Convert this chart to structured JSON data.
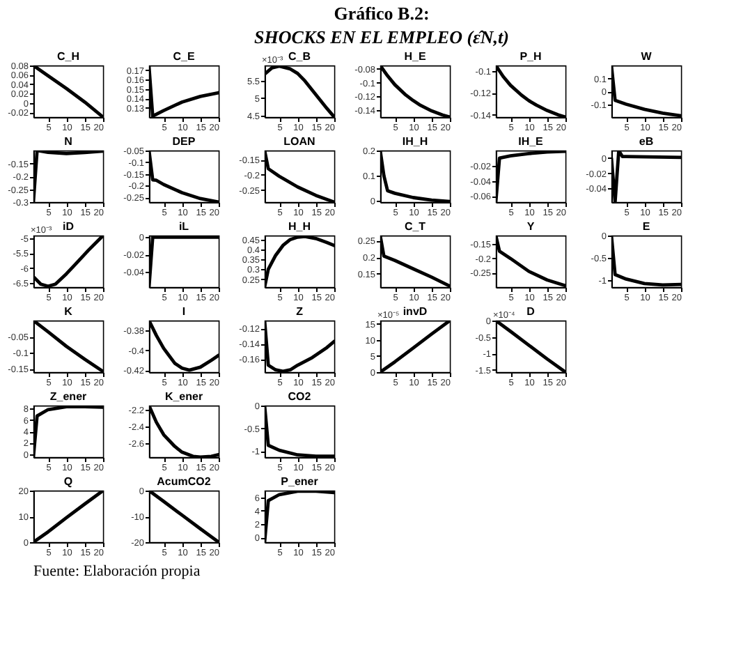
{
  "chart_data": [
    {
      "type": "other",
      "title": "Gráfico B.2:",
      "subtitle": "SHOCKS EN EL EMPLEO (ε̂N,t)",
      "annotations": [
        "Fuente:      Elaboración propia"
      ]
    },
    {
      "type": "line",
      "title": "C_H",
      "x": [
        1,
        5,
        10,
        15,
        20
      ],
      "series": [
        {
          "color": "#000000",
          "values": [
            0.08,
            0.058,
            0.031,
            0.002,
            -0.03
          ]
        }
      ],
      "xlim": [
        1,
        20
      ],
      "xticks": [
        5,
        10,
        15,
        20
      ],
      "ylim": [
        -0.03,
        0.08
      ],
      "yticks": [
        -0.02,
        0,
        0.02,
        0.04,
        0.06,
        0.08
      ],
      "grid": false
    },
    {
      "type": "line",
      "title": "C_E",
      "x": [
        1,
        2,
        5,
        10,
        15,
        20
      ],
      "series": [
        {
          "color": "#000000",
          "values": [
            0.174,
            0.121,
            0.127,
            0.136,
            0.142,
            0.146
          ]
        }
      ],
      "xlim": [
        1,
        20
      ],
      "xticks": [
        5,
        10,
        15,
        20
      ],
      "ylim": [
        0.12,
        0.175
      ],
      "yticks": [
        0.13,
        0.14,
        0.15,
        0.16,
        0.17
      ],
      "grid": false
    },
    {
      "type": "line",
      "title": "C_B",
      "annotations": [
        "×10⁻³"
      ],
      "x": [
        1,
        3,
        5,
        8,
        10,
        12,
        15,
        18,
        20
      ],
      "series": [
        {
          "color": "#000000",
          "values": [
            5.7,
            5.88,
            5.93,
            5.85,
            5.72,
            5.5,
            5.1,
            4.7,
            4.45
          ]
        }
      ],
      "xlim": [
        1,
        20
      ],
      "xticks": [
        5,
        10,
        15,
        20
      ],
      "ylim": [
        4.45,
        5.95
      ],
      "yticks": [
        4.5,
        5,
        5.5
      ],
      "grid": false
    },
    {
      "type": "line",
      "title": "H_E",
      "x": [
        1,
        3,
        5,
        8,
        10,
        12,
        15,
        18,
        20
      ],
      "series": [
        {
          "color": "#000000",
          "values": [
            -0.075,
            -0.09,
            -0.103,
            -0.118,
            -0.126,
            -0.133,
            -0.141,
            -0.147,
            -0.15
          ]
        }
      ],
      "xlim": [
        1,
        20
      ],
      "xticks": [
        5,
        10,
        15,
        20
      ],
      "ylim": [
        -0.15,
        -0.075
      ],
      "yticks": [
        -0.14,
        -0.12,
        -0.1,
        -0.08
      ],
      "grid": false
    },
    {
      "type": "line",
      "title": "P_H",
      "x": [
        1,
        3,
        5,
        8,
        10,
        12,
        15,
        18,
        20
      ],
      "series": [
        {
          "color": "#000000",
          "values": [
            -0.095,
            -0.105,
            -0.113,
            -0.122,
            -0.127,
            -0.131,
            -0.136,
            -0.14,
            -0.142
          ]
        }
      ],
      "xlim": [
        1,
        20
      ],
      "xticks": [
        5,
        10,
        15,
        20
      ],
      "ylim": [
        -0.142,
        -0.095
      ],
      "yticks": [
        -0.14,
        -0.12,
        -0.1
      ],
      "grid": false
    },
    {
      "type": "line",
      "title": "W",
      "x": [
        1,
        2,
        5,
        10,
        15,
        20
      ],
      "series": [
        {
          "color": "#000000",
          "values": [
            0.2,
            -0.07,
            -0.1,
            -0.14,
            -0.17,
            -0.19
          ]
        }
      ],
      "xlim": [
        1,
        20
      ],
      "xticks": [
        5,
        10,
        15,
        20
      ],
      "ylim": [
        -0.2,
        0.2
      ],
      "yticks": [
        -0.1,
        0,
        0.1
      ],
      "grid": false
    },
    {
      "type": "line",
      "title": "N",
      "x": [
        1,
        2,
        5,
        10,
        15,
        20
      ],
      "series": [
        {
          "color": "#000000",
          "values": [
            -0.3,
            -0.1,
            -0.107,
            -0.112,
            -0.108,
            -0.102
          ]
        }
      ],
      "xlim": [
        1,
        20
      ],
      "xticks": [
        5,
        10,
        15,
        20
      ],
      "ylim": [
        -0.3,
        -0.1
      ],
      "yticks": [
        -0.3,
        -0.25,
        -0.2,
        -0.15
      ],
      "grid": false
    },
    {
      "type": "line",
      "title": "DEP",
      "x": [
        1,
        2,
        3,
        5,
        10,
        15,
        20
      ],
      "series": [
        {
          "color": "#000000",
          "values": [
            -0.05,
            -0.175,
            -0.177,
            -0.195,
            -0.23,
            -0.255,
            -0.27
          ]
        }
      ],
      "xlim": [
        1,
        20
      ],
      "xticks": [
        5,
        10,
        15,
        20
      ],
      "ylim": [
        -0.27,
        -0.05
      ],
      "yticks": [
        -0.25,
        -0.2,
        -0.15,
        -0.1,
        -0.05
      ],
      "grid": false
    },
    {
      "type": "line",
      "title": "LOAN",
      "x": [
        1,
        2,
        5,
        10,
        15,
        20
      ],
      "series": [
        {
          "color": "#000000",
          "values": [
            -0.12,
            -0.18,
            -0.205,
            -0.24,
            -0.268,
            -0.29
          ]
        }
      ],
      "xlim": [
        1,
        20
      ],
      "xticks": [
        5,
        10,
        15,
        20
      ],
      "ylim": [
        -0.29,
        -0.12
      ],
      "yticks": [
        -0.25,
        -0.2,
        -0.15
      ],
      "grid": false
    },
    {
      "type": "line",
      "title": "IH_H",
      "x": [
        1,
        2,
        3,
        5,
        10,
        15,
        20
      ],
      "series": [
        {
          "color": "#000000",
          "values": [
            0.2,
            0.1,
            0.04,
            0.03,
            0.013,
            0.003,
            -0.003
          ]
        }
      ],
      "xlim": [
        1,
        20
      ],
      "xticks": [
        5,
        10,
        15,
        20
      ],
      "ylim": [
        -0.005,
        0.2
      ],
      "yticks": [
        0,
        0.1,
        0.2
      ],
      "grid": false
    },
    {
      "type": "line",
      "title": "IH_E",
      "x": [
        1,
        2,
        5,
        10,
        15,
        20
      ],
      "series": [
        {
          "color": "#000000",
          "values": [
            -0.068,
            -0.01,
            -0.007,
            -0.004,
            -0.002,
            -0.001
          ]
        }
      ],
      "xlim": [
        1,
        20
      ],
      "xticks": [
        5,
        10,
        15,
        20
      ],
      "ylim": [
        -0.068,
        0
      ],
      "yticks": [
        -0.06,
        -0.04,
        -0.02
      ],
      "grid": false
    },
    {
      "type": "line",
      "title": "eB",
      "x": [
        1,
        2,
        3,
        4,
        5,
        20
      ],
      "series": [
        {
          "color": "#000000",
          "values": [
            0,
            -0.058,
            0.01,
            0.002,
            0.002,
            0.001
          ]
        }
      ],
      "xlim": [
        1,
        20
      ],
      "xticks": [
        5,
        10,
        15,
        20
      ],
      "ylim": [
        -0.058,
        0.01
      ],
      "yticks": [
        -0.04,
        -0.02,
        0
      ],
      "grid": false
    },
    {
      "type": "line",
      "title": "iD",
      "annotations": [
        "×10⁻³"
      ],
      "x": [
        1,
        3,
        5,
        7,
        10,
        13,
        16,
        20
      ],
      "series": [
        {
          "color": "#000000",
          "values": [
            -6.3,
            -6.55,
            -6.62,
            -6.55,
            -6.2,
            -5.8,
            -5.4,
            -4.9
          ]
        }
      ],
      "xlim": [
        1,
        20
      ],
      "xticks": [
        5,
        10,
        15,
        20
      ],
      "ylim": [
        -6.65,
        -4.9
      ],
      "yticks": [
        -6.5,
        -6,
        -5.5,
        -5
      ],
      "grid": false
    },
    {
      "type": "line",
      "title": "iL",
      "x": [
        1,
        2,
        20
      ],
      "series": [
        {
          "color": "#000000",
          "values": [
            -0.058,
            0,
            0
          ]
        }
      ],
      "xlim": [
        1,
        20
      ],
      "xticks": [
        5,
        10,
        15,
        20
      ],
      "ylim": [
        -0.058,
        0.002
      ],
      "yticks": [
        -0.04,
        -0.02,
        0
      ],
      "grid": false
    },
    {
      "type": "line",
      "title": "H_H",
      "x": [
        1,
        2,
        4,
        6,
        8,
        10,
        12,
        15,
        18,
        20
      ],
      "series": [
        {
          "color": "#000000",
          "values": [
            0.21,
            0.3,
            0.37,
            0.42,
            0.45,
            0.462,
            0.465,
            0.455,
            0.435,
            0.42
          ]
        }
      ],
      "xlim": [
        1,
        20
      ],
      "xticks": [
        5,
        10,
        15,
        20
      ],
      "ylim": [
        0.21,
        0.47
      ],
      "yticks": [
        0.25,
        0.3,
        0.35,
        0.4,
        0.45
      ],
      "grid": false
    },
    {
      "type": "line",
      "title": "C_T",
      "x": [
        1,
        2,
        5,
        10,
        15,
        20
      ],
      "series": [
        {
          "color": "#000000",
          "values": [
            0.265,
            0.203,
            0.19,
            0.165,
            0.14,
            0.113
          ]
        }
      ],
      "xlim": [
        1,
        20
      ],
      "xticks": [
        5,
        10,
        15,
        20
      ],
      "ylim": [
        0.11,
        0.265
      ],
      "yticks": [
        0.15,
        0.2,
        0.25
      ],
      "grid": false
    },
    {
      "type": "line",
      "title": "Y",
      "x": [
        1,
        2,
        5,
        10,
        15,
        20
      ],
      "series": [
        {
          "color": "#000000",
          "values": [
            -0.12,
            -0.175,
            -0.2,
            -0.245,
            -0.275,
            -0.295
          ]
        }
      ],
      "xlim": [
        1,
        20
      ],
      "xticks": [
        5,
        10,
        15,
        20
      ],
      "ylim": [
        -0.3,
        -0.12
      ],
      "yticks": [
        -0.25,
        -0.2,
        -0.15
      ],
      "grid": false
    },
    {
      "type": "line",
      "title": "E",
      "x": [
        1,
        2,
        5,
        10,
        15,
        20
      ],
      "series": [
        {
          "color": "#000000",
          "values": [
            0,
            -0.87,
            -0.97,
            -1.07,
            -1.1,
            -1.09
          ]
        }
      ],
      "xlim": [
        1,
        20
      ],
      "xticks": [
        5,
        10,
        15,
        20
      ],
      "ylim": [
        -1.15,
        0
      ],
      "yticks": [
        -1,
        -0.5,
        0
      ],
      "grid": false
    },
    {
      "type": "line",
      "title": "K",
      "x": [
        1,
        5,
        10,
        15,
        20
      ],
      "series": [
        {
          "color": "#000000",
          "values": [
            0,
            -0.035,
            -0.08,
            -0.12,
            -0.158
          ]
        }
      ],
      "xlim": [
        1,
        20
      ],
      "xticks": [
        5,
        10,
        15,
        20
      ],
      "ylim": [
        -0.16,
        0
      ],
      "yticks": [
        -0.15,
        -0.1,
        -0.05
      ],
      "grid": false
    },
    {
      "type": "line",
      "title": "I",
      "x": [
        1,
        3,
        5,
        8,
        10,
        12,
        15,
        18,
        20
      ],
      "series": [
        {
          "color": "#000000",
          "values": [
            -0.37,
            -0.385,
            -0.398,
            -0.413,
            -0.418,
            -0.42,
            -0.417,
            -0.41,
            -0.405
          ]
        }
      ],
      "xlim": [
        1,
        20
      ],
      "xticks": [
        5,
        10,
        15,
        20
      ],
      "ylim": [
        -0.422,
        -0.37
      ],
      "yticks": [
        -0.42,
        -0.4,
        -0.38
      ],
      "grid": false
    },
    {
      "type": "line",
      "title": "Z",
      "x": [
        1,
        2,
        4,
        6,
        8,
        10,
        14,
        18,
        20
      ],
      "series": [
        {
          "color": "#000000",
          "values": [
            -0.11,
            -0.168,
            -0.174,
            -0.176,
            -0.174,
            -0.168,
            -0.158,
            -0.145,
            -0.137
          ]
        }
      ],
      "xlim": [
        1,
        20
      ],
      "xticks": [
        5,
        10,
        15,
        20
      ],
      "ylim": [
        -0.177,
        -0.11
      ],
      "yticks": [
        -0.16,
        -0.14,
        -0.12
      ],
      "grid": false
    },
    {
      "type": "line",
      "title": "invD",
      "annotations": [
        "×10⁻⁵"
      ],
      "x": [
        1,
        5,
        10,
        15,
        20
      ],
      "series": [
        {
          "color": "#000000",
          "values": [
            0,
            3.2,
            7.5,
            11.8,
            16
          ]
        }
      ],
      "xlim": [
        1,
        20
      ],
      "xticks": [
        5,
        10,
        15,
        20
      ],
      "ylim": [
        0,
        16
      ],
      "yticks": [
        0,
        5,
        10,
        15
      ],
      "grid": false
    },
    {
      "type": "line",
      "title": "D",
      "annotations": [
        "×10⁻⁴"
      ],
      "x": [
        1,
        5,
        10,
        15,
        20
      ],
      "series": [
        {
          "color": "#000000",
          "values": [
            0,
            -0.33,
            -0.75,
            -1.17,
            -1.57
          ]
        }
      ],
      "xlim": [
        1,
        20
      ],
      "xticks": [
        5,
        10,
        15,
        20
      ],
      "ylim": [
        -1.57,
        0
      ],
      "yticks": [
        -1.5,
        -1,
        -0.5,
        0
      ],
      "grid": false
    },
    {
      "type": "line",
      "title": "Z_ener",
      "x": [
        1,
        2,
        5,
        10,
        15,
        20
      ],
      "series": [
        {
          "color": "#000000",
          "values": [
            -0.5,
            6.7,
            7.8,
            8.3,
            8.3,
            8.2
          ]
        }
      ],
      "xlim": [
        1,
        20
      ],
      "xticks": [
        5,
        10,
        15,
        20
      ],
      "ylim": [
        -0.5,
        8.5
      ],
      "yticks": [
        0,
        2,
        4,
        6,
        8
      ],
      "grid": false
    },
    {
      "type": "line",
      "title": "K_ener",
      "x": [
        1,
        3,
        5,
        8,
        10,
        13,
        15,
        18,
        20
      ],
      "series": [
        {
          "color": "#000000",
          "values": [
            -2.15,
            -2.35,
            -2.5,
            -2.64,
            -2.71,
            -2.76,
            -2.77,
            -2.76,
            -2.74
          ]
        }
      ],
      "xlim": [
        1,
        20
      ],
      "xticks": [
        5,
        10,
        15,
        20
      ],
      "ylim": [
        -2.77,
        -2.15
      ],
      "yticks": [
        -2.6,
        -2.4,
        -2.2
      ],
      "grid": false
    },
    {
      "type": "line",
      "title": "CO2",
      "x": [
        1,
        2,
        5,
        10,
        15,
        20
      ],
      "series": [
        {
          "color": "#000000",
          "values": [
            0,
            -0.87,
            -0.98,
            -1.08,
            -1.11,
            -1.11
          ]
        }
      ],
      "xlim": [
        1,
        20
      ],
      "xticks": [
        5,
        10,
        15,
        20
      ],
      "ylim": [
        -1.13,
        0
      ],
      "yticks": [
        -1,
        -0.5,
        0
      ],
      "grid": false
    },
    {
      "type": "line",
      "title": "Q",
      "x": [
        1,
        5,
        10,
        15,
        20
      ],
      "series": [
        {
          "color": "#000000",
          "values": [
            0,
            4,
            9.5,
            14.8,
            20
          ]
        }
      ],
      "xlim": [
        1,
        20
      ],
      "xticks": [
        5,
        10,
        15,
        20
      ],
      "ylim": [
        0,
        20
      ],
      "yticks": [
        0,
        10,
        20
      ],
      "grid": false
    },
    {
      "type": "line",
      "title": "AcumCO2",
      "x": [
        1,
        5,
        10,
        15,
        20
      ],
      "series": [
        {
          "color": "#000000",
          "values": [
            0,
            -4.2,
            -9.5,
            -14.8,
            -20
          ]
        }
      ],
      "xlim": [
        1,
        20
      ],
      "xticks": [
        5,
        10,
        15,
        20
      ],
      "ylim": [
        -20,
        0
      ],
      "yticks": [
        -20,
        -10,
        0
      ],
      "grid": false
    },
    {
      "type": "line",
      "title": "P_ener",
      "x": [
        1,
        2,
        5,
        10,
        15,
        20
      ],
      "series": [
        {
          "color": "#000000",
          "values": [
            -0.7,
            5.5,
            6.4,
            6.9,
            6.9,
            6.7
          ]
        }
      ],
      "xlim": [
        1,
        20
      ],
      "xticks": [
        5,
        10,
        15,
        20
      ],
      "ylim": [
        -0.7,
        7
      ],
      "yticks": [
        0,
        2,
        4,
        6
      ],
      "grid": false
    }
  ]
}
